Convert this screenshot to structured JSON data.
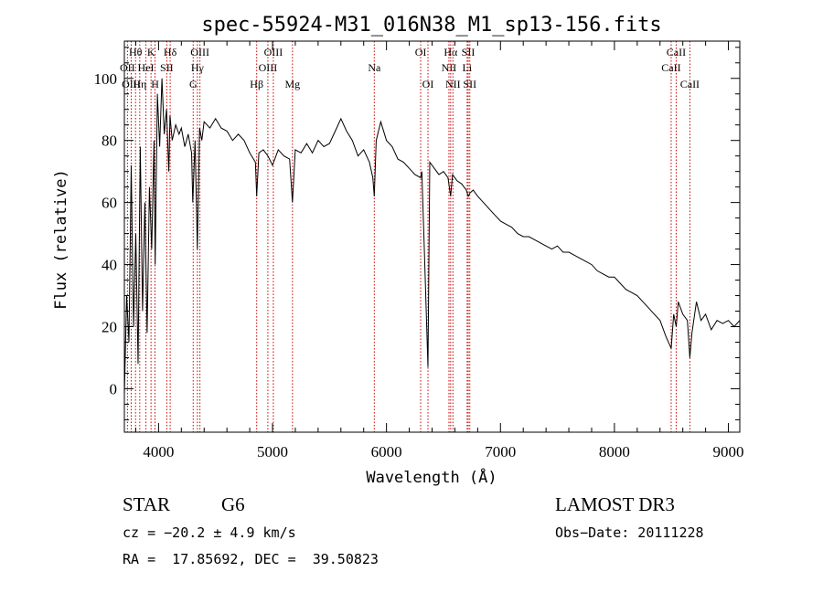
{
  "chart_data": {
    "type": "line",
    "title": "spec-55924-M31_016N38_M1_sp13-156.fits",
    "xlabel": "Wavelength (Å)",
    "ylabel": "Flux (relative)",
    "xlim": [
      3700,
      9100
    ],
    "ylim": [
      -14,
      112
    ],
    "xticks": [
      4000,
      5000,
      6000,
      7000,
      8000,
      9000
    ],
    "yticks": [
      0,
      20,
      40,
      60,
      80,
      100
    ],
    "series": [
      {
        "name": "flux",
        "x": [
          3700,
          3720,
          3740,
          3760,
          3780,
          3800,
          3820,
          3840,
          3860,
          3880,
          3900,
          3920,
          3940,
          3960,
          3970,
          3990,
          4010,
          4030,
          4050,
          4070,
          4090,
          4100,
          4120,
          4150,
          4180,
          4200,
          4230,
          4260,
          4290,
          4300,
          4320,
          4340,
          4360,
          4380,
          4400,
          4450,
          4500,
          4550,
          4600,
          4650,
          4700,
          4750,
          4800,
          4850,
          4861,
          4880,
          4920,
          4960,
          5000,
          5050,
          5100,
          5150,
          5175,
          5200,
          5250,
          5300,
          5350,
          5400,
          5450,
          5500,
          5550,
          5600,
          5650,
          5700,
          5750,
          5800,
          5850,
          5880,
          5893,
          5910,
          5950,
          6000,
          6050,
          6100,
          6150,
          6200,
          6250,
          6300,
          6310,
          6330,
          6364,
          6380,
          6420,
          6460,
          6500,
          6540,
          6563,
          6580,
          6620,
          6660,
          6700,
          6717,
          6731,
          6760,
          6800,
          6850,
          6900,
          6950,
          7000,
          7050,
          7100,
          7150,
          7200,
          7250,
          7300,
          7350,
          7400,
          7450,
          7500,
          7550,
          7600,
          7650,
          7700,
          7750,
          7800,
          7850,
          7900,
          7950,
          8000,
          8050,
          8100,
          8150,
          8200,
          8250,
          8300,
          8350,
          8400,
          8450,
          8498,
          8520,
          8542,
          8560,
          8600,
          8640,
          8662,
          8680,
          8720,
          8760,
          8800,
          8850,
          8900,
          8950,
          9000,
          9050,
          9100
        ],
        "y": [
          -2,
          30,
          15,
          72,
          20,
          50,
          8,
          78,
          25,
          60,
          18,
          65,
          45,
          80,
          40,
          95,
          78,
          100,
          82,
          90,
          70,
          88,
          80,
          85,
          82,
          84,
          78,
          82,
          76,
          60,
          80,
          45,
          84,
          80,
          86,
          84,
          87,
          84,
          83,
          80,
          82,
          80,
          76,
          73,
          62,
          76,
          77,
          75,
          72,
          77,
          75,
          74,
          60,
          77,
          76,
          79,
          76,
          80,
          78,
          79,
          83,
          87,
          83,
          80,
          75,
          77,
          73,
          68,
          62,
          80,
          86,
          80,
          78,
          74,
          73,
          71,
          69,
          68,
          70,
          47,
          7,
          73,
          71,
          69,
          70,
          68,
          62,
          69,
          67,
          66,
          64,
          62,
          63,
          64,
          62,
          60,
          58,
          56,
          54,
          53,
          52,
          50,
          49,
          49,
          48,
          47,
          46,
          45,
          46,
          44,
          44,
          43,
          42,
          41,
          40,
          38,
          37,
          36,
          36,
          34,
          32,
          31,
          30,
          28,
          26,
          24,
          22,
          17,
          13,
          24,
          20,
          28,
          24,
          22,
          10,
          18,
          28,
          22,
          24,
          19,
          22,
          21,
          22,
          20,
          22
        ]
      }
    ],
    "lines": [
      {
        "label": "Hθ",
        "wave": 3798,
        "row": 0
      },
      {
        "label": "OII",
        "wave": 3727,
        "row": 1
      },
      {
        "label": "OIII",
        "wave": 3760,
        "row": 2
      },
      {
        "label": "Hη",
        "wave": 3835,
        "row": 2
      },
      {
        "label": "HeI",
        "wave": 3889,
        "row": 1
      },
      {
        "label": "K",
        "wave": 3934,
        "row": 0
      },
      {
        "label": "H",
        "wave": 3969,
        "row": 2
      },
      {
        "label": "SII",
        "wave": 4072,
        "row": 1
      },
      {
        "label": "Hδ",
        "wave": 4102,
        "row": 0
      },
      {
        "label": "G",
        "wave": 4304,
        "row": 2
      },
      {
        "label": "Hγ",
        "wave": 4341,
        "row": 1
      },
      {
        "label": "OIII",
        "wave": 4363,
        "row": 0
      },
      {
        "label": "Hβ",
        "wave": 4861,
        "row": 2
      },
      {
        "label": "OIII",
        "wave": 4959,
        "row": 1
      },
      {
        "label": "OIII",
        "wave": 5007,
        "row": 0
      },
      {
        "label": "Mg",
        "wave": 5175,
        "row": 2
      },
      {
        "label": "Na",
        "wave": 5893,
        "row": 1
      },
      {
        "label": "OI",
        "wave": 6300,
        "row": 0
      },
      {
        "label": "OI",
        "wave": 6364,
        "row": 2
      },
      {
        "label": "NII",
        "wave": 6548,
        "row": 1
      },
      {
        "label": "Hα",
        "wave": 6563,
        "row": 0
      },
      {
        "label": "NII",
        "wave": 6583,
        "row": 2
      },
      {
        "label": "Li",
        "wave": 6708,
        "row": 1
      },
      {
        "label": "SII",
        "wave": 6717,
        "row": 0
      },
      {
        "label": "SII",
        "wave": 6731,
        "row": 2
      },
      {
        "label": "CaII",
        "wave": 8498,
        "row": 1
      },
      {
        "label": "CaII",
        "wave": 8542,
        "row": 0
      },
      {
        "label": "CaII",
        "wave": 8662,
        "row": 2
      }
    ]
  },
  "info": {
    "object_class": "STAR",
    "subclass": "G6",
    "survey": "LAMOST DR3",
    "velocity": "cz = −20.2 ± 4.9 km/s",
    "obs_date": "Obs−Date: 20111228",
    "coords": "RA =  17.85692, DEC =  39.50823"
  },
  "colors": {
    "line_marker": "#cc0000",
    "spectrum": "#000000"
  }
}
